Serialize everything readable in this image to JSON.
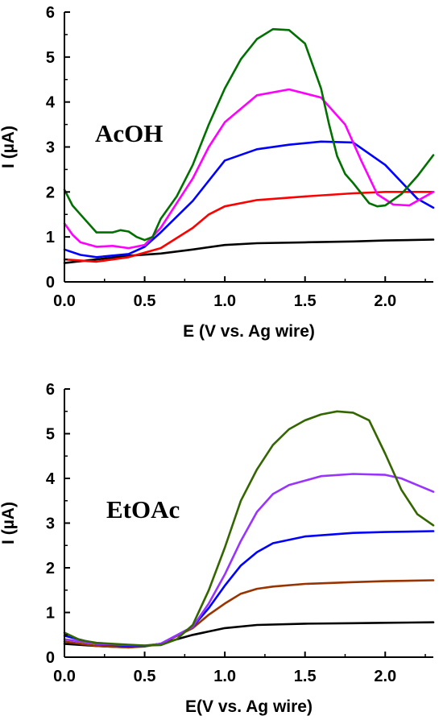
{
  "chart_data": [
    {
      "type": "line",
      "panel_label": "AcOH",
      "xlabel": "E (V vs. Ag wire)",
      "ylabel": "I (µA)",
      "xlim": [
        0.0,
        2.3
      ],
      "ylim": [
        0,
        6
      ],
      "xticks": [
        "0.0",
        "0.5",
        "1.0",
        "1.5",
        "2.0"
      ],
      "xtick_values": [
        0.0,
        0.5,
        1.0,
        1.5,
        2.0
      ],
      "yticks": [
        "0",
        "1",
        "2",
        "3",
        "4",
        "5",
        "6"
      ],
      "ytick_values": [
        0,
        1,
        2,
        3,
        4,
        5,
        6
      ],
      "grid": false,
      "series": [
        {
          "color": "#000000",
          "x": [
            0.0,
            0.2,
            0.4,
            0.6,
            0.8,
            1.0,
            1.2,
            1.5,
            1.8,
            2.0,
            2.3
          ],
          "y": [
            0.42,
            0.5,
            0.58,
            0.63,
            0.72,
            0.82,
            0.86,
            0.88,
            0.9,
            0.92,
            0.94
          ]
        },
        {
          "color": "#ff0000",
          "x": [
            0.0,
            0.2,
            0.4,
            0.6,
            0.8,
            0.9,
            1.0,
            1.2,
            1.5,
            1.8,
            2.0,
            2.3
          ],
          "y": [
            0.5,
            0.45,
            0.55,
            0.75,
            1.2,
            1.5,
            1.68,
            1.82,
            1.9,
            1.97,
            2.0,
            2.0
          ]
        },
        {
          "color": "#0000ff",
          "x": [
            0.0,
            0.1,
            0.2,
            0.4,
            0.5,
            0.6,
            0.8,
            1.0,
            1.2,
            1.4,
            1.6,
            1.8,
            2.0,
            2.2,
            2.3
          ],
          "y": [
            0.72,
            0.6,
            0.55,
            0.62,
            0.78,
            1.1,
            1.8,
            2.7,
            2.95,
            3.05,
            3.12,
            3.1,
            2.6,
            1.85,
            1.65
          ]
        },
        {
          "color": "#ff00ff",
          "x": [
            0.0,
            0.05,
            0.1,
            0.2,
            0.3,
            0.4,
            0.5,
            0.6,
            0.8,
            0.9,
            1.0,
            1.2,
            1.4,
            1.6,
            1.75,
            1.85,
            1.95,
            2.05,
            2.15,
            2.3
          ],
          "y": [
            1.3,
            1.05,
            0.88,
            0.78,
            0.8,
            0.75,
            0.82,
            1.2,
            2.3,
            3.0,
            3.55,
            4.15,
            4.28,
            4.1,
            3.5,
            2.7,
            1.95,
            1.72,
            1.7,
            2.0
          ]
        },
        {
          "color": "#007000",
          "x": [
            0.0,
            0.05,
            0.1,
            0.2,
            0.3,
            0.35,
            0.4,
            0.45,
            0.5,
            0.55,
            0.6,
            0.7,
            0.8,
            0.9,
            1.0,
            1.1,
            1.2,
            1.3,
            1.4,
            1.5,
            1.6,
            1.65,
            1.7,
            1.75,
            1.8,
            1.9,
            1.95,
            2.0,
            2.1,
            2.2,
            2.3
          ],
          "y": [
            2.05,
            1.7,
            1.5,
            1.1,
            1.1,
            1.15,
            1.12,
            1.0,
            0.93,
            1.0,
            1.4,
            1.9,
            2.6,
            3.5,
            4.3,
            4.95,
            5.4,
            5.62,
            5.6,
            5.3,
            4.3,
            3.5,
            2.8,
            2.4,
            2.2,
            1.75,
            1.68,
            1.7,
            1.95,
            2.35,
            2.82
          ]
        }
      ]
    },
    {
      "type": "line",
      "panel_label": "EtOAc",
      "xlabel": "E(V vs. Ag wire)",
      "ylabel": "I (µA)",
      "xlim": [
        0.0,
        2.3
      ],
      "ylim": [
        0,
        6
      ],
      "xticks": [
        "0.0",
        "0.5",
        "1.0",
        "1.5",
        "2.0"
      ],
      "xtick_values": [
        0.0,
        0.5,
        1.0,
        1.5,
        2.0
      ],
      "yticks": [
        "0",
        "1",
        "2",
        "3",
        "4",
        "5",
        "6"
      ],
      "ytick_values": [
        0,
        1,
        2,
        3,
        4,
        5,
        6
      ],
      "grid": false,
      "series": [
        {
          "color": "#000000",
          "x": [
            0.0,
            0.2,
            0.4,
            0.5,
            0.6,
            0.8,
            1.0,
            1.2,
            1.5,
            1.8,
            2.0,
            2.3
          ],
          "y": [
            0.3,
            0.25,
            0.22,
            0.25,
            0.3,
            0.5,
            0.65,
            0.72,
            0.75,
            0.76,
            0.77,
            0.78
          ]
        },
        {
          "color": "#993300",
          "x": [
            0.0,
            0.2,
            0.4,
            0.5,
            0.6,
            0.8,
            0.9,
            1.0,
            1.1,
            1.2,
            1.3,
            1.5,
            1.8,
            2.0,
            2.3
          ],
          "y": [
            0.35,
            0.25,
            0.22,
            0.24,
            0.3,
            0.65,
            0.95,
            1.2,
            1.42,
            1.53,
            1.58,
            1.64,
            1.68,
            1.7,
            1.72
          ]
        },
        {
          "color": "#0000ff",
          "x": [
            0.0,
            0.2,
            0.4,
            0.5,
            0.6,
            0.8,
            0.9,
            1.0,
            1.1,
            1.2,
            1.3,
            1.5,
            1.8,
            2.0,
            2.3
          ],
          "y": [
            0.48,
            0.3,
            0.25,
            0.25,
            0.3,
            0.68,
            1.1,
            1.6,
            2.05,
            2.35,
            2.55,
            2.7,
            2.78,
            2.8,
            2.82
          ]
        },
        {
          "color": "#9933ff",
          "x": [
            0.0,
            0.2,
            0.4,
            0.5,
            0.6,
            0.8,
            0.9,
            1.0,
            1.1,
            1.2,
            1.3,
            1.4,
            1.5,
            1.6,
            1.8,
            2.0,
            2.1,
            2.2,
            2.3
          ],
          "y": [
            0.4,
            0.3,
            0.27,
            0.26,
            0.3,
            0.68,
            1.2,
            1.85,
            2.6,
            3.25,
            3.65,
            3.85,
            3.95,
            4.05,
            4.1,
            4.08,
            4.0,
            3.85,
            3.7
          ]
        },
        {
          "color": "#336600",
          "x": [
            0.0,
            0.1,
            0.2,
            0.4,
            0.5,
            0.6,
            0.7,
            0.8,
            0.9,
            1.0,
            1.1,
            1.2,
            1.3,
            1.4,
            1.5,
            1.6,
            1.7,
            1.8,
            1.9,
            2.0,
            2.1,
            2.2,
            2.3
          ],
          "y": [
            0.55,
            0.38,
            0.32,
            0.28,
            0.26,
            0.27,
            0.4,
            0.72,
            1.5,
            2.45,
            3.5,
            4.2,
            4.75,
            5.1,
            5.3,
            5.43,
            5.5,
            5.47,
            5.3,
            4.55,
            3.75,
            3.2,
            2.95
          ]
        }
      ]
    }
  ]
}
